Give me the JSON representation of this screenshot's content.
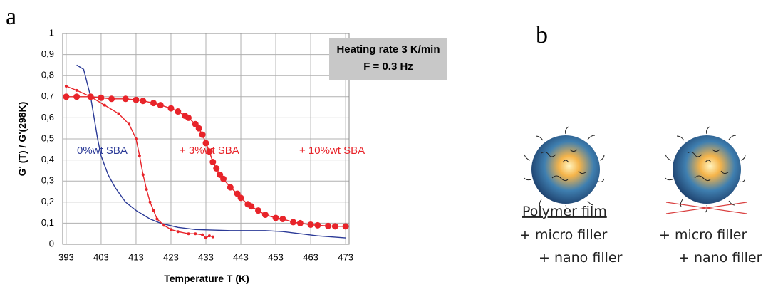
{
  "chart_data": {
    "type": "line",
    "panel_label": "a",
    "xlabel": "Temperature T (K)",
    "ylabel": "G' (T) / G'(298K)",
    "annotation": [
      "Heating rate 3 K/min",
      "F = 0.3 Hz"
    ],
    "xlim": [
      392,
      474
    ],
    "xticks": [
      393,
      403,
      413,
      423,
      433,
      443,
      453,
      463,
      473
    ],
    "ylim": [
      0,
      1
    ],
    "yticks": [
      0,
      {
        "value": 0.1,
        "label": "0,1"
      },
      {
        "value": 0.2,
        "label": "0,2"
      },
      {
        "value": 0.3,
        "label": "0,3"
      },
      {
        "value": 0.4,
        "label": "0,4"
      },
      {
        "value": 0.5,
        "label": "0,5"
      },
      {
        "value": 0.6,
        "label": "0,6"
      },
      {
        "value": 0.7,
        "label": "0,7"
      },
      {
        "value": 0.8,
        "label": "0,8"
      },
      {
        "value": 0.9,
        "label": "0,9"
      },
      1
    ],
    "grid": true,
    "series": [
      {
        "name": "0%wt SBA",
        "color": "#2b3a97",
        "marker_size": 0,
        "x": [
          396,
          398,
          400,
          401,
          402,
          403,
          405,
          407,
          410,
          413,
          417,
          420,
          425,
          430,
          440,
          450,
          455,
          460,
          465,
          473
        ],
        "values": [
          0.85,
          0.83,
          0.7,
          0.6,
          0.5,
          0.42,
          0.33,
          0.27,
          0.2,
          0.16,
          0.12,
          0.1,
          0.08,
          0.07,
          0.065,
          0.065,
          0.06,
          0.05,
          0.04,
          0.03
        ]
      },
      {
        "name": "+ 3%wt SBA",
        "color": "#e8242a",
        "marker_size": 2,
        "x": [
          393,
          396,
          400,
          404,
          408,
          411,
          413,
          414,
          415,
          416,
          417,
          418,
          419,
          421,
          423,
          425,
          428,
          430,
          432,
          433,
          434,
          435
        ],
        "values": [
          0.75,
          0.73,
          0.7,
          0.66,
          0.62,
          0.57,
          0.5,
          0.42,
          0.33,
          0.26,
          0.2,
          0.16,
          0.12,
          0.09,
          0.07,
          0.06,
          0.05,
          0.05,
          0.045,
          0.03,
          0.04,
          0.035
        ]
      },
      {
        "name": "+ 10%wt SBA",
        "color": "#e8242a",
        "marker_size": 4.5,
        "x": [
          393,
          396,
          400,
          403,
          406,
          410,
          413,
          415,
          418,
          420,
          423,
          425,
          427,
          428,
          430,
          431,
          432,
          433,
          434,
          435,
          436,
          437,
          438,
          440,
          442,
          443,
          445,
          446,
          448,
          450,
          453,
          455,
          458,
          460,
          463,
          465,
          468,
          470,
          473
        ],
        "values": [
          0.7,
          0.7,
          0.7,
          0.695,
          0.69,
          0.69,
          0.685,
          0.68,
          0.67,
          0.66,
          0.645,
          0.63,
          0.61,
          0.6,
          0.57,
          0.55,
          0.52,
          0.48,
          0.44,
          0.39,
          0.36,
          0.33,
          0.31,
          0.27,
          0.24,
          0.22,
          0.19,
          0.18,
          0.16,
          0.14,
          0.125,
          0.12,
          0.105,
          0.1,
          0.093,
          0.09,
          0.087,
          0.085,
          0.085
        ]
      }
    ]
  },
  "panel_b": {
    "label": "b",
    "left": [
      "Polymer film",
      "+ micro filler",
      "+ nano filler"
    ],
    "right": [
      "+ micro filler",
      "+ nano filler"
    ]
  }
}
